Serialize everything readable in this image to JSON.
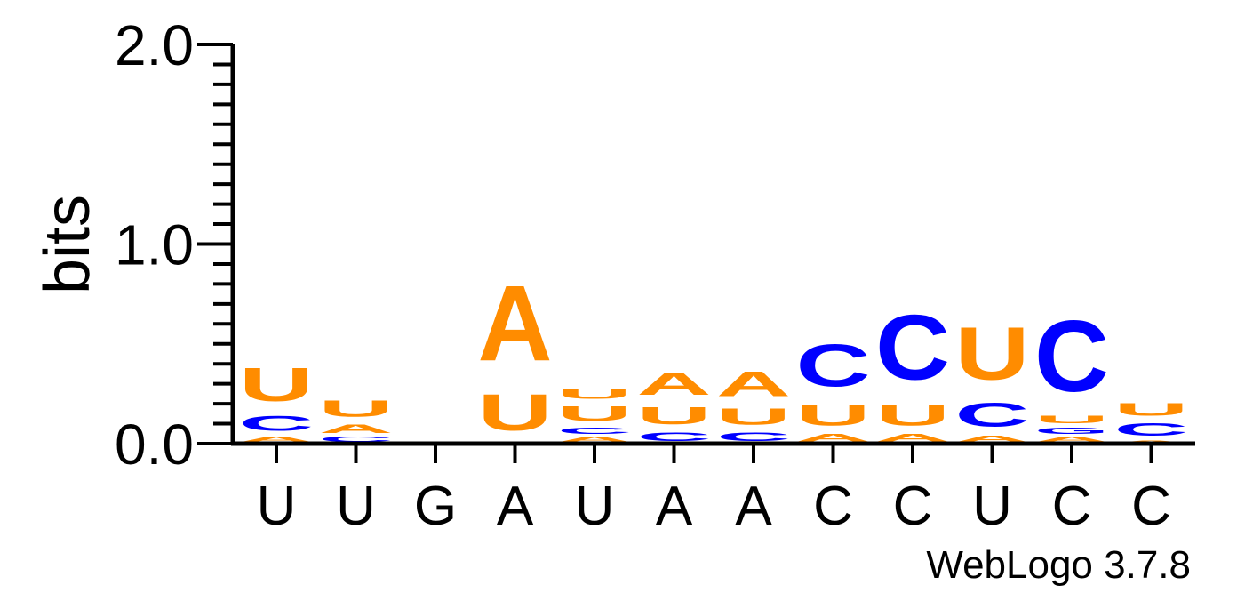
{
  "chart_data": {
    "type": "sequence-logo",
    "ylabel": "bits",
    "ylim": [
      0,
      2.0
    ],
    "yticks": [
      "0.0",
      "1.0",
      "2.0"
    ],
    "consensus": [
      "U",
      "U",
      "G",
      "A",
      "U",
      "A",
      "A",
      "C",
      "C",
      "U",
      "C",
      "C"
    ],
    "colors": {
      "A": "#ff8c00",
      "U": "#ff8c00",
      "C": "#0000ff",
      "G": "#0000ff"
    },
    "positions": [
      [
        {
          "letter": "A",
          "bits": 0.04
        },
        {
          "letter": "C",
          "bits": 0.12
        },
        {
          "letter": "U",
          "bits": 0.27
        }
      ],
      [
        {
          "letter": "C",
          "bits": 0.04
        },
        {
          "letter": "A",
          "bits": 0.07
        },
        {
          "letter": "U",
          "bits": 0.13
        }
      ],
      [],
      [
        {
          "letter": "C",
          "bits": 0.01
        },
        {
          "letter": "U",
          "bits": 0.29
        },
        {
          "letter": "A",
          "bits": 0.6
        }
      ],
      [
        {
          "letter": "A",
          "bits": 0.04
        },
        {
          "letter": "C",
          "bits": 0.05
        },
        {
          "letter": "U",
          "bits": 0.12
        },
        {
          "letter": "U",
          "bits": 0.08
        }
      ],
      [
        {
          "letter": "C",
          "bits": 0.07
        },
        {
          "letter": "U",
          "bits": 0.14
        },
        {
          "letter": "A",
          "bits": 0.18
        }
      ],
      [
        {
          "letter": "C",
          "bits": 0.07
        },
        {
          "letter": "U",
          "bits": 0.13
        },
        {
          "letter": "A",
          "bits": 0.2
        }
      ],
      [
        {
          "letter": "A",
          "bits": 0.06
        },
        {
          "letter": "U",
          "bits": 0.16
        },
        {
          "letter": "C",
          "bits": 0.34
        }
      ],
      [
        {
          "letter": "A",
          "bits": 0.06
        },
        {
          "letter": "U",
          "bits": 0.16
        },
        {
          "letter": "C",
          "bits": 0.52
        }
      ],
      [
        {
          "letter": "A",
          "bits": 0.05
        },
        {
          "letter": "C",
          "bits": 0.19
        },
        {
          "letter": "U",
          "bits": 0.42
        }
      ],
      [
        {
          "letter": "A",
          "bits": 0.04
        },
        {
          "letter": "G",
          "bits": 0.05
        },
        {
          "letter": "U",
          "bits": 0.06
        },
        {
          "letter": "C",
          "bits": 0.57
        }
      ],
      [
        {
          "letter": "A",
          "bits": 0.02
        },
        {
          "letter": "C",
          "bits": 0.1
        },
        {
          "letter": "U",
          "bits": 0.1
        }
      ]
    ]
  },
  "footer": {
    "credit": "WebLogo 3.7.8"
  }
}
